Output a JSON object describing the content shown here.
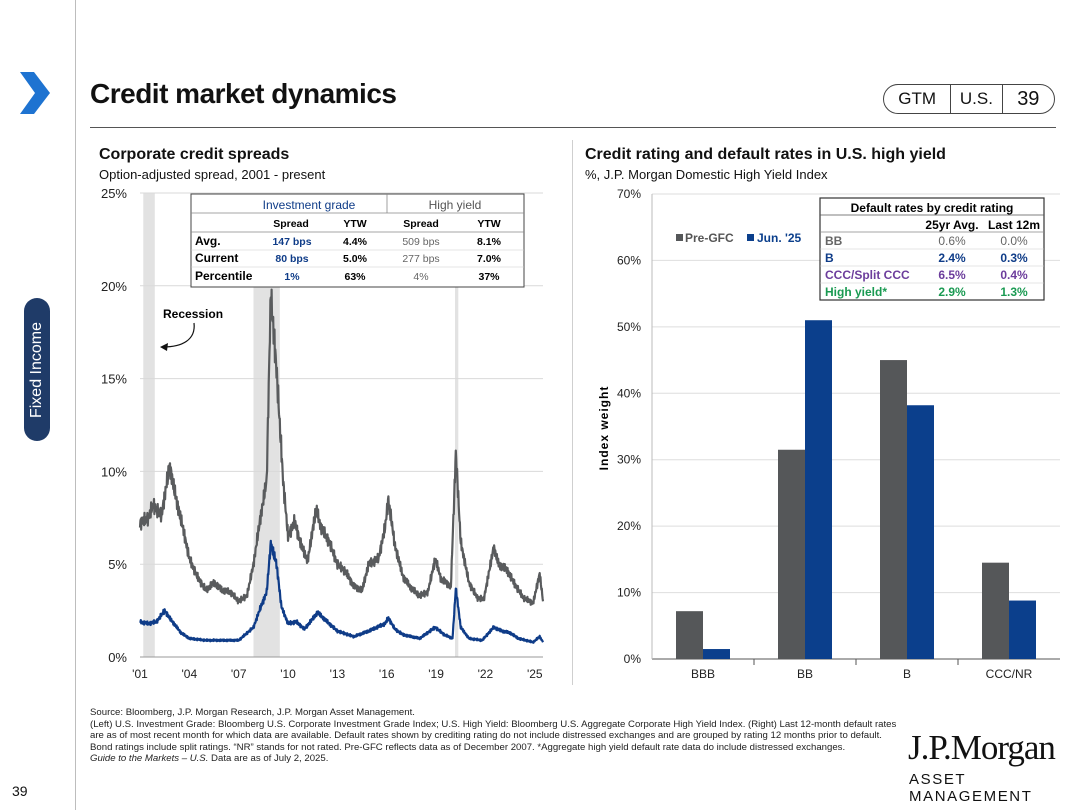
{
  "header": {
    "title": "Credit market dynamics",
    "badges": [
      "GTM",
      "U.S.",
      "39"
    ],
    "side_tab": "Fixed Income"
  },
  "left_panel": {
    "title": "Corporate credit spreads",
    "subtitle": "Option-adjusted spread, 2001 - present",
    "recession_label": "Recession",
    "table": {
      "group_headers": [
        "Investment grade",
        "High yield"
      ],
      "col_headers": [
        "Spread",
        "YTW",
        "Spread",
        "YTW"
      ],
      "rows": [
        {
          "label": "Avg.",
          "cells": [
            "147 bps",
            "4.4%",
            "509 bps",
            "8.1%"
          ]
        },
        {
          "label": "Current",
          "cells": [
            "80 bps",
            "5.0%",
            "277 bps",
            "7.0%"
          ]
        },
        {
          "label": "Percentile",
          "cells": [
            "1%",
            "63%",
            "4%",
            "37%"
          ]
        }
      ]
    }
  },
  "right_panel": {
    "title": "Credit rating and default rates in U.S. high yield",
    "subtitle": "%, J.P. Morgan Domestic High Yield Index",
    "table": {
      "title": "Default rates by credit rating",
      "col_headers": [
        "25yr Avg.",
        "Last 12m"
      ],
      "rows": [
        {
          "label": "BB",
          "cells": [
            "0.6%",
            "0.0%"
          ]
        },
        {
          "label": "B",
          "cells": [
            "2.4%",
            "0.3%"
          ]
        },
        {
          "label": "CCC/Split CCC",
          "cells": [
            "6.5%",
            "0.4%"
          ]
        },
        {
          "label": "High yield*",
          "cells": [
            "2.9%",
            "1.3%"
          ]
        }
      ]
    }
  },
  "colors": {
    "ig_blue": "#0f3c88",
    "hy_gray": "#595b5d",
    "bar_gray": "#555759",
    "bar_blue": "#0b3f8c",
    "purple": "#6c3d9c",
    "green": "#1a9a52",
    "side_tab": "#1f3b68"
  },
  "chart_data": [
    {
      "type": "line",
      "title": "Corporate credit spreads",
      "subtitle": "Option-adjusted spread, 2001 - present",
      "ylim": [
        0,
        25
      ],
      "yticks": [
        "0%",
        "5%",
        "10%",
        "15%",
        "20%",
        "25%"
      ],
      "xlim": [
        2001,
        2025.5
      ],
      "xticks": [
        "'01",
        "'04",
        "'07",
        "'10",
        "'13",
        "'16",
        "'19",
        "'22",
        "'25"
      ],
      "recessions": [
        [
          2001.2,
          2001.9
        ],
        [
          2007.9,
          2009.5
        ],
        [
          2020.15,
          2020.35
        ]
      ],
      "series": [
        {
          "name": "High yield",
          "points": [
            [
              2001,
              7.2
            ],
            [
              2001.5,
              7.5
            ],
            [
              2001.8,
              8.2
            ],
            [
              2002.3,
              7.6
            ],
            [
              2002.8,
              10.3
            ],
            [
              2003.2,
              8.5
            ],
            [
              2003.6,
              7.0
            ],
            [
              2004,
              5.3
            ],
            [
              2004.5,
              4.3
            ],
            [
              2005,
              3.6
            ],
            [
              2005.5,
              4.0
            ],
            [
              2006,
              3.6
            ],
            [
              2006.5,
              3.5
            ],
            [
              2007,
              3.0
            ],
            [
              2007.5,
              3.3
            ],
            [
              2007.9,
              5.0
            ],
            [
              2008.3,
              7.4
            ],
            [
              2008.7,
              9.5
            ],
            [
              2008.95,
              19.5
            ],
            [
              2009.3,
              15.5
            ],
            [
              2009.7,
              9.5
            ],
            [
              2010,
              6.5
            ],
            [
              2010.4,
              7.3
            ],
            [
              2010.8,
              6.0
            ],
            [
              2011.2,
              5.2
            ],
            [
              2011.7,
              8.0
            ],
            [
              2012,
              7.0
            ],
            [
              2012.5,
              6.2
            ],
            [
              2013,
              5.0
            ],
            [
              2013.5,
              4.6
            ],
            [
              2014,
              3.8
            ],
            [
              2014.5,
              3.6
            ],
            [
              2014.9,
              5.0
            ],
            [
              2015.5,
              5.3
            ],
            [
              2015.9,
              7.0
            ],
            [
              2016.1,
              8.5
            ],
            [
              2016.5,
              6.0
            ],
            [
              2017,
              4.3
            ],
            [
              2017.5,
              3.7
            ],
            [
              2018,
              3.3
            ],
            [
              2018.5,
              3.5
            ],
            [
              2018.95,
              5.3
            ],
            [
              2019.3,
              4.2
            ],
            [
              2019.9,
              3.8
            ],
            [
              2020.2,
              11.0
            ],
            [
              2020.5,
              6.2
            ],
            [
              2021,
              4.0
            ],
            [
              2021.5,
              3.2
            ],
            [
              2021.9,
              3.1
            ],
            [
              2022.5,
              5.9
            ],
            [
              2022.8,
              5.0
            ],
            [
              2023.3,
              4.7
            ],
            [
              2023.8,
              3.9
            ],
            [
              2024.3,
              3.2
            ],
            [
              2024.9,
              2.9
            ],
            [
              2025.3,
              4.5
            ],
            [
              2025.5,
              3.0
            ]
          ]
        },
        {
          "name": "Investment grade",
          "points": [
            [
              2001,
              1.9
            ],
            [
              2001.5,
              1.8
            ],
            [
              2002,
              1.9
            ],
            [
              2002.5,
              2.5
            ],
            [
              2002.8,
              2.1
            ],
            [
              2003.5,
              1.3
            ],
            [
              2004,
              1.0
            ],
            [
              2005,
              0.9
            ],
            [
              2006,
              0.9
            ],
            [
              2007,
              0.9
            ],
            [
              2007.9,
              1.6
            ],
            [
              2008.3,
              2.6
            ],
            [
              2008.7,
              3.5
            ],
            [
              2008.95,
              6.1
            ],
            [
              2009.3,
              5.0
            ],
            [
              2009.6,
              2.7
            ],
            [
              2010,
              1.8
            ],
            [
              2010.5,
              1.9
            ],
            [
              2011,
              1.5
            ],
            [
              2011.8,
              2.4
            ],
            [
              2012.5,
              1.8
            ],
            [
              2013,
              1.4
            ],
            [
              2014,
              1.1
            ],
            [
              2014.9,
              1.4
            ],
            [
              2015.9,
              1.8
            ],
            [
              2016.1,
              2.1
            ],
            [
              2016.5,
              1.5
            ],
            [
              2017,
              1.2
            ],
            [
              2018,
              1.0
            ],
            [
              2018.95,
              1.6
            ],
            [
              2019.5,
              1.2
            ],
            [
              2020,
              1.0
            ],
            [
              2020.2,
              3.7
            ],
            [
              2020.5,
              1.6
            ],
            [
              2021,
              1.0
            ],
            [
              2021.8,
              0.9
            ],
            [
              2022.5,
              1.6
            ],
            [
              2023,
              1.4
            ],
            [
              2023.5,
              1.3
            ],
            [
              2024,
              1.0
            ],
            [
              2024.9,
              0.8
            ],
            [
              2025.3,
              1.1
            ],
            [
              2025.5,
              0.8
            ]
          ]
        }
      ]
    },
    {
      "type": "bar",
      "title": "Credit rating and default rates in U.S. high yield",
      "subtitle": "%, J.P. Morgan Domestic High Yield Index",
      "ylabel": "Index weight",
      "ylim": [
        0,
        70
      ],
      "yticks": [
        "0%",
        "10%",
        "20%",
        "30%",
        "40%",
        "50%",
        "60%",
        "70%"
      ],
      "categories": [
        "BBB",
        "BB",
        "B",
        "CCC/NR"
      ],
      "legend": "top-left",
      "series": [
        {
          "name": "Pre-GFC",
          "values": [
            7.2,
            31.5,
            45.0,
            14.5
          ]
        },
        {
          "name": "Jun. '25",
          "values": [
            1.5,
            51.0,
            38.2,
            8.8
          ]
        }
      ]
    }
  ],
  "footer": {
    "source": "Source: Bloomberg, J.P. Morgan Research, J.P. Morgan Asset Management.",
    "notes": "(Left) U.S. Investment Grade: Bloomberg U.S. Corporate Investment Grade Index; U.S. High Yield: Bloomberg U.S. Aggregate Corporate High Yield Index. (Right) Last 12-month default rates are as of most recent month for which data are available. Default rates shown by crediting rating do not include distressed exchanges and are grouped by rating 12 months prior to default. Bond ratings include split ratings. “NR” stands for not rated. Pre-GFC reflects data as of December 2007. *Aggregate high yield default rate data do include distressed exchanges.",
    "guide_italic": "Guide to the Markets – U.S.",
    "guide_rest": " Data are as of July 2, 2025.",
    "page_number": "39",
    "logo_main": "J.P.Morgan",
    "logo_sub": "ASSET MANAGEMENT"
  }
}
